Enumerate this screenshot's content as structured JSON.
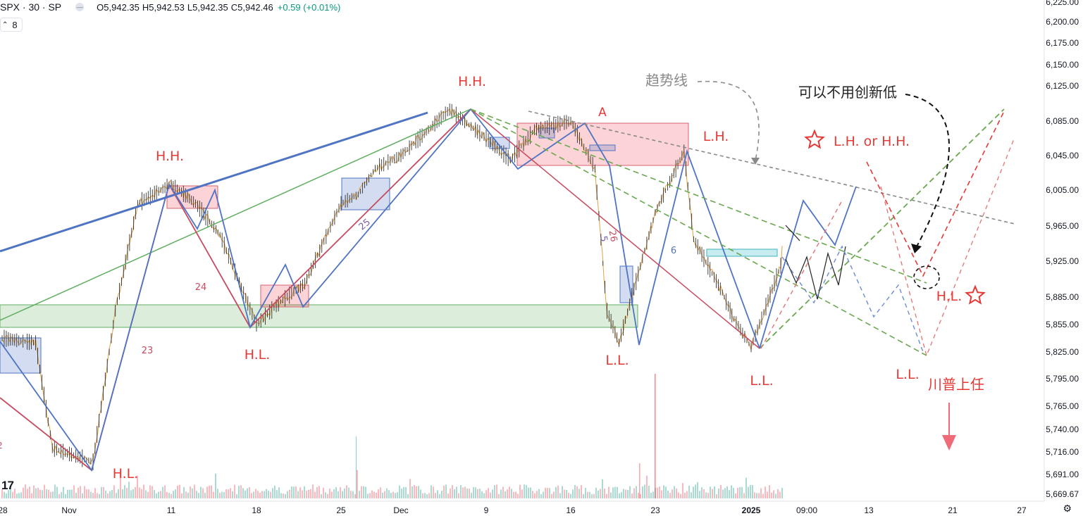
{
  "header": {
    "symbol": "SPX · 30 · SP",
    "o_label": "O",
    "o_value": "5,942.35",
    "h_label": "H",
    "h_value": "5,942.53",
    "l_label": "L",
    "l_value": "5,942.35",
    "c_label": "C",
    "c_value": "5,942.46",
    "change": "+0.59 (+0.01%)",
    "indicator_count": "8",
    "logo": "17"
  },
  "colors": {
    "up": "#089981",
    "down": "#f23645",
    "candle_price": "#e0a24a",
    "blue_line": "#4f74c4",
    "red_line": "#c74b60",
    "green_line": "#5fae5f",
    "annotation_red": "#e53935",
    "gray": "#8a8a8a"
  },
  "chart_data": {
    "type": "candlestick",
    "y_axis": {
      "ticks": [
        "6,225.00",
        "6,200.00",
        "6,175.00",
        "6,150.00",
        "6,125.00",
        "6,085.00",
        "6,045.00",
        "6,005.00",
        "5,965.00",
        "5,925.00",
        "5,885.00",
        "5,855.00",
        "5,825.00",
        "5,795.00",
        "5,765.00",
        "5,740.00",
        "5,716.00",
        "5,691.00",
        "5,669.67"
      ],
      "values": [
        6225,
        6200,
        6175,
        6150,
        6125,
        6085,
        6045,
        6005,
        5965,
        5925,
        5885,
        5855,
        5825,
        5795,
        5765,
        5740,
        5716,
        5691,
        5669.67
      ]
    },
    "x_axis": {
      "ticks": [
        "28",
        "Nov",
        "4",
        "11",
        "18",
        "25",
        "Dec",
        "9",
        "16",
        "23",
        "2025",
        "09:00",
        "13",
        "21",
        "27"
      ]
    },
    "price_path": [
      [
        "Oct 28",
        5840
      ],
      [
        "Oct 30",
        5835
      ],
      [
        "Oct 31",
        5720
      ],
      [
        "Nov 4",
        5705
      ],
      [
        "Nov 6",
        5870
      ],
      [
        "Nov 8",
        5990
      ],
      [
        "Nov 11",
        6012
      ],
      [
        "Nov 13",
        5990
      ],
      [
        "Nov 15",
        5955
      ],
      [
        "Nov 18",
        5855
      ],
      [
        "Nov 20",
        5880
      ],
      [
        "Nov 22",
        5900
      ],
      [
        "Nov 25",
        5990
      ],
      [
        "Nov 27",
        6000
      ],
      [
        "Nov 29",
        6030
      ],
      [
        "Dec 2",
        6045
      ],
      [
        "Dec 6",
        6098
      ],
      [
        "Dec 9",
        6065
      ],
      [
        "Dec 11",
        6040
      ],
      [
        "Dec 13",
        6075
      ],
      [
        "Dec 16",
        6085
      ],
      [
        "Dec 18",
        6030
      ],
      [
        "Dec 19",
        5870
      ],
      [
        "Dec 20",
        5835
      ],
      [
        "Dec 23",
        5980
      ],
      [
        "Dec 26",
        6050
      ],
      [
        "Dec 27",
        5950
      ],
      [
        "Dec 30",
        5890
      ],
      [
        "Dec 31",
        5865
      ],
      [
        "Jan 2",
        5830
      ],
      [
        "Jan 3",
        5920
      ],
      [
        "Jan 3 close",
        5942.46
      ]
    ],
    "annotations": [
      "H.H.",
      "H.H.",
      "H.L.",
      "H.L.",
      "L.L.",
      "L.H.",
      "L.L.",
      "L.L.",
      "A",
      "趋势线",
      "可以不用创新低",
      "L.H. or H.H.",
      "H.L.",
      "川普上任",
      "23",
      "24",
      "25",
      "5",
      "26",
      "6"
    ]
  }
}
